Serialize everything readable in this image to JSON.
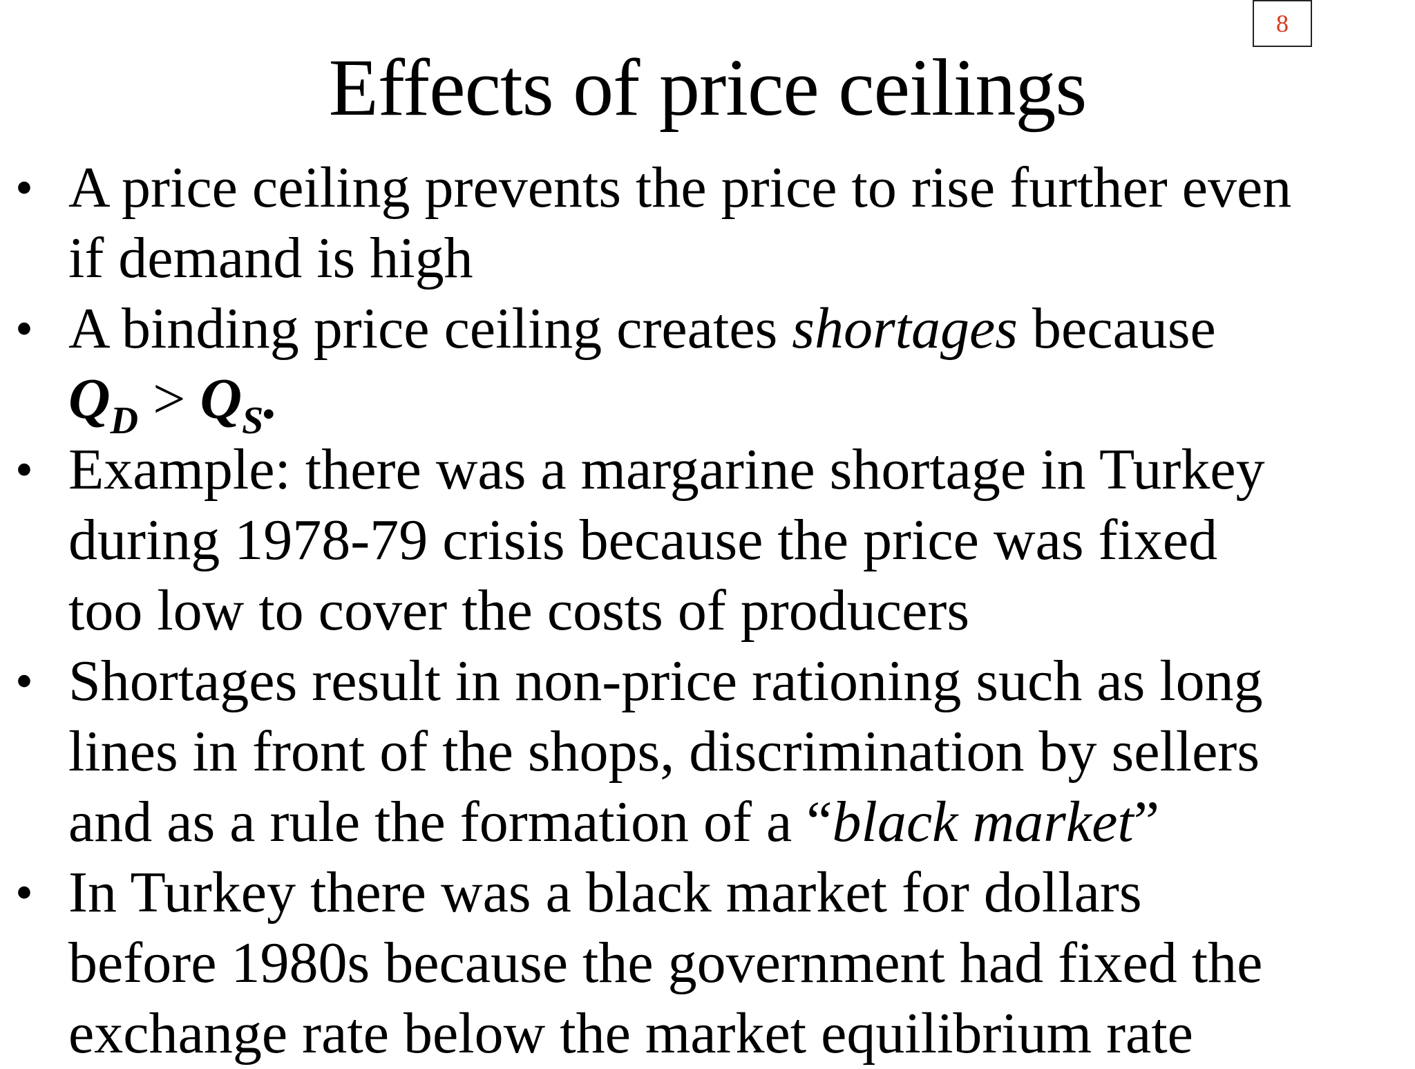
{
  "slide": {
    "number": "8",
    "title": "Effects of price ceilings"
  },
  "bullets": [
    {
      "lines": [
        "A price ceiling prevents the price to rise further even",
        "if demand is high"
      ]
    },
    {
      "line1_pre": "A binding price ceiling creates ",
      "line1_italic": "shortages",
      "line1_post": " because",
      "formula": {
        "q1": "Q",
        "sub1": "D",
        "op": " > ",
        "q2": "Q",
        "sub2": "S",
        "end": "."
      }
    },
    {
      "lines": [
        "Example: there was a margarine shortage in Turkey",
        "during 1978-79 crisis because the price was fixed",
        "too low to cover the costs of producers"
      ]
    },
    {
      "lines": [
        "Shortages result in non-price rationing such as long",
        "lines in front of the shops, discrimination by sellers"
      ],
      "last_pre": "and as a rule the formation of  a “",
      "last_italic": "black market",
      "last_post": "”"
    },
    {
      "lines": [
        "In Turkey there was a black market for dollars",
        "before 1980s because the government had fixed the",
        "exchange rate below the market equilibrium rate"
      ]
    }
  ]
}
